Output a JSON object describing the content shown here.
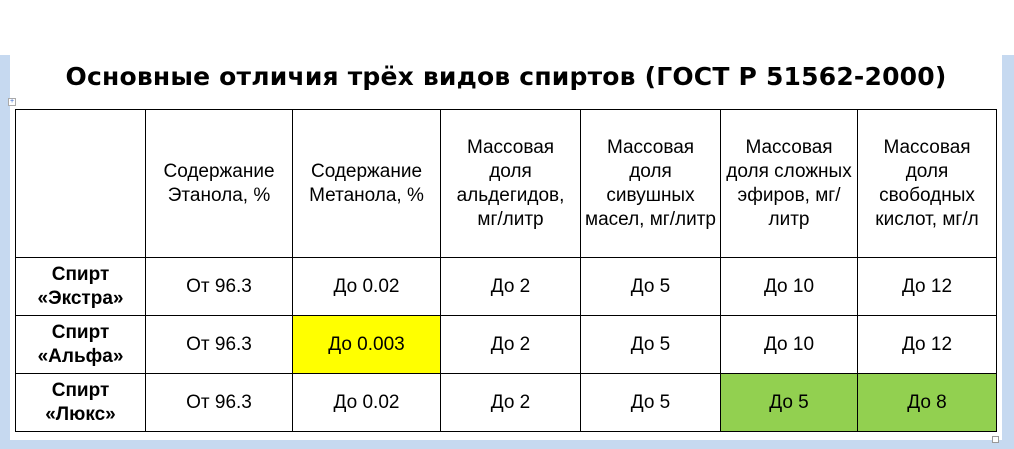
{
  "title": "Основные отличия трёх видов спиртов (ГОСТ Р 51562-2000)",
  "colors": {
    "frame": "#c6d9f0",
    "highlight_yellow": "#ffff00",
    "highlight_green": "#92d050"
  },
  "table": {
    "headers": [
      "",
      "Содержание Этанола, %",
      "Содержание Метанола, %",
      "Массовая доля альдегидов, мг/литр",
      "Массовая доля сивушных масел, мг/литр",
      "Массовая доля сложных эфиров, мг/литр",
      "Массовая доля свободных кислот, мг/л"
    ],
    "rows": [
      {
        "name": "Спирт «Экстра»",
        "cells": [
          "От 96.3",
          "До 0.02",
          "До 2",
          "До 5",
          "До 10",
          "До 12"
        ]
      },
      {
        "name": "Спирт «Альфа»",
        "cells": [
          "От 96.3",
          "До 0.003",
          "До 2",
          "До 5",
          "До 10",
          "До 12"
        ]
      },
      {
        "name": "Спирт «Люкс»",
        "cells": [
          "От 96.3",
          "До 0.02",
          "До 2",
          "До 5",
          "До 5",
          "До 8"
        ]
      }
    ]
  }
}
